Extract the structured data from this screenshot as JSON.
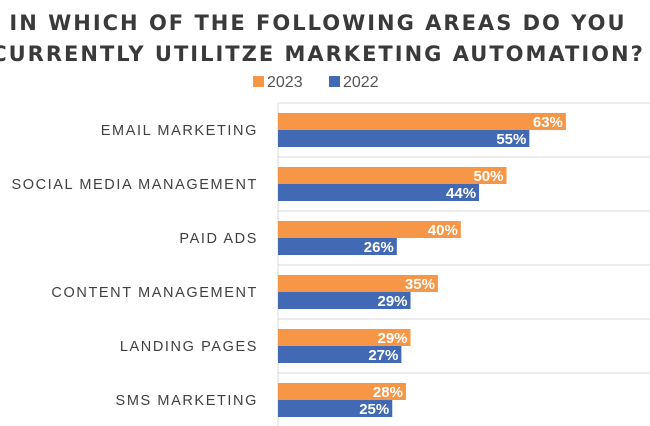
{
  "chart_data": {
    "type": "bar",
    "orientation": "horizontal",
    "title": [
      "IN WHICH OF THE FOLLOWING AREAS DO YOU",
      "CURRENTLY UTILITZE MARKETING AUTOMATION?"
    ],
    "categories": [
      "EMAIL MARKETING",
      "SOCIAL MEDIA MANAGEMENT",
      "PAID ADS",
      "CONTENT MANAGEMENT",
      "LANDING PAGES",
      "SMS MARKETING"
    ],
    "series": [
      {
        "name": "2023",
        "color": "#F79646",
        "values": [
          63,
          50,
          40,
          35,
          29,
          28
        ],
        "labels": [
          "63%",
          "50%",
          "40%",
          "35%",
          "29%",
          "28%"
        ]
      },
      {
        "name": "2022",
        "color": "#4169B4",
        "values": [
          55,
          44,
          26,
          29,
          27,
          25
        ],
        "labels": [
          "55%",
          "44%",
          "26%",
          "29%",
          "27%",
          "25%"
        ]
      }
    ],
    "xlim": [
      0,
      81
    ],
    "legend": "top",
    "grid": "horizontal category separators"
  }
}
